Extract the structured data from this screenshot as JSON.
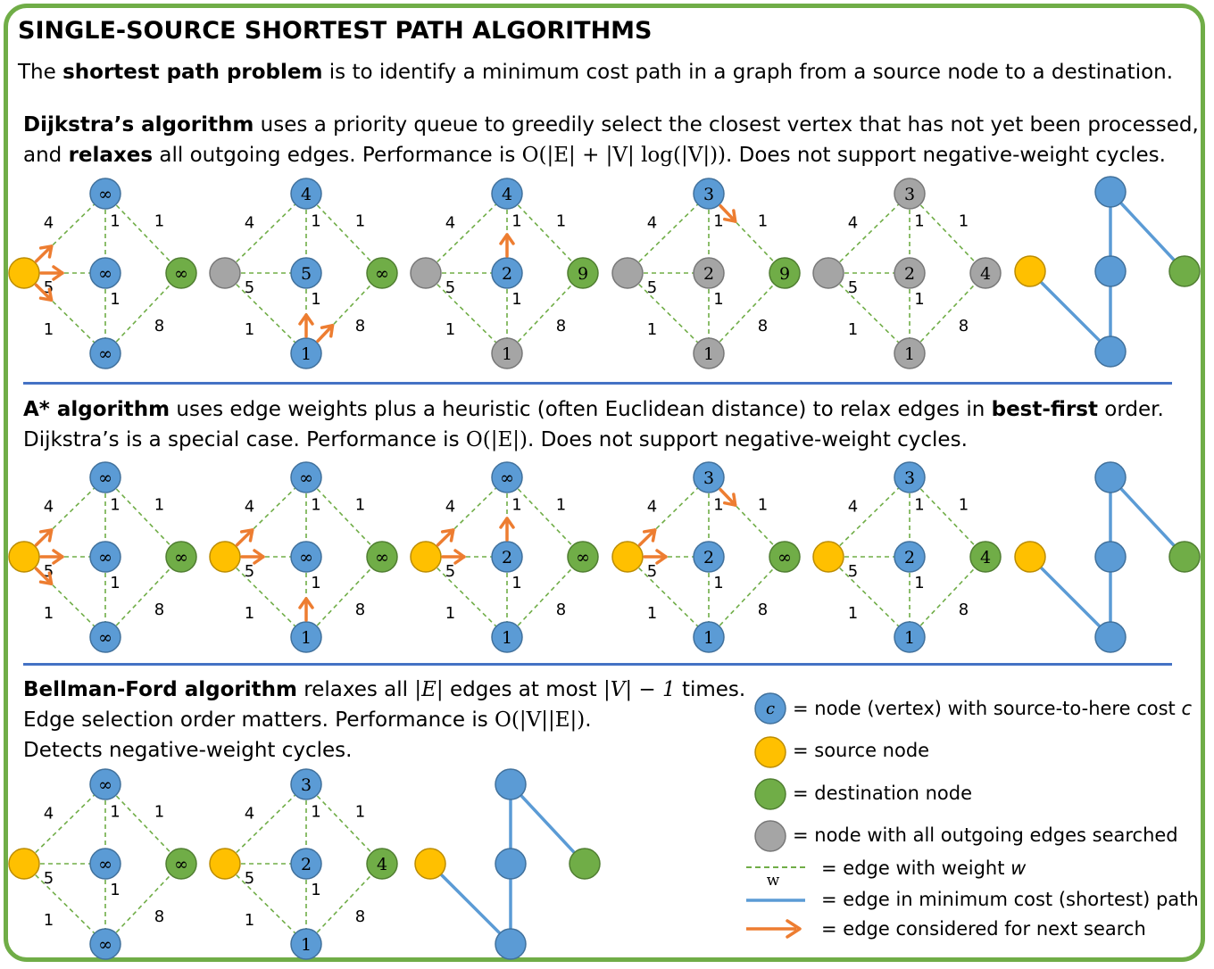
{
  "title": "SINGLE-SOURCE SHORTEST PATH ALGORITHMS",
  "intro": {
    "pre": "The ",
    "bold": "shortest path problem",
    "post": " is to identify a minimum cost path in a graph from a source node to a destination."
  },
  "dijkstra": {
    "name": "Dijkstra’s algorithm",
    "line1_rest": " uses a priority queue to greedily select the closest vertex that has not yet been processed,",
    "line2_pre": "and ",
    "line2_bold": "relaxes",
    "line2_mid": " all outgoing edges. Performance is ",
    "line2_math": "O(|E| + |V| log(|V|))",
    "line2_post": ". Does not support negative-weight cycles."
  },
  "astar": {
    "name": "A* algorithm",
    "line1_rest": " uses edge weights plus a heuristic (often Euclidean distance) to relax edges in ",
    "line1_bold": "best-first",
    "line1_post": " order.",
    "line2_pre": "Dijkstra’s is a special case. Performance is ",
    "line2_math": "O(|E|)",
    "line2_post": ". Does not support negative-weight cycles."
  },
  "bellman": {
    "name": "Bellman-Ford algorithm",
    "line1_rest": " relaxes all ",
    "line1_math1": "|E|",
    "line1_mid": " edges at most ",
    "line1_math2": "|V| − 1",
    "line1_post": " times.",
    "line2_pre": "Edge selection order matters. Performance is ",
    "line2_math": "O(|V||E|)",
    "line2_post": ".",
    "line3": "Detects negative-weight cycles."
  },
  "legend": {
    "node_symbol": "c",
    "node_pre": "= node (vertex) with source-to-here cost ",
    "node_var": "c",
    "source": "= source node",
    "destination": "= destination node",
    "searched": "= node with all outgoing edges searched",
    "weight_symbol": "w",
    "edge_pre": "= edge with weight ",
    "edge_var": "w",
    "path": "= edge in minimum cost (shortest) path",
    "next": "= edge considered for next search"
  },
  "colors": {
    "frame": "#70ad47",
    "node_blue": "#5b9bd5",
    "node_source": "#ffc000",
    "node_dest": "#70ad47",
    "node_gray": "#a5a5a5",
    "edge_dashed": "#70ad47",
    "path_edge": "#5b9bd5",
    "arrow": "#ed7d31",
    "rule": "#4472c4"
  },
  "edge_weights": {
    "s_top": "4",
    "s_mid": "5",
    "s_bot": "1",
    "top_mid": "1",
    "mid_bot": "1",
    "top_dest": "1",
    "bot_dest": "8"
  },
  "graphs": {
    "dijkstra": [
      {
        "labels": {
          "top": "∞",
          "mid": "∞",
          "bot": "∞",
          "dest": "∞",
          "src": ""
        },
        "kinds": {
          "src": "source",
          "top": "blue",
          "mid": "blue",
          "bot": "blue",
          "dest": "dest"
        },
        "arrows": [
          "s_top",
          "s_mid",
          "s_bot"
        ]
      },
      {
        "labels": {
          "top": "4",
          "mid": "5",
          "bot": "1",
          "dest": "∞",
          "src": ""
        },
        "kinds": {
          "src": "gray",
          "top": "blue",
          "mid": "blue",
          "bot": "blue",
          "dest": "dest"
        },
        "arrows": [
          "bot_mid",
          "bot_dest"
        ]
      },
      {
        "labels": {
          "top": "4",
          "mid": "2",
          "bot": "1",
          "dest": "9",
          "src": ""
        },
        "kinds": {
          "src": "gray",
          "top": "blue",
          "mid": "blue",
          "bot": "gray",
          "dest": "dest"
        },
        "arrows": [
          "mid_top"
        ]
      },
      {
        "labels": {
          "top": "3",
          "mid": "2",
          "bot": "1",
          "dest": "9",
          "src": ""
        },
        "kinds": {
          "src": "gray",
          "top": "blue",
          "mid": "gray",
          "bot": "gray",
          "dest": "dest"
        },
        "arrows": [
          "top_dest"
        ]
      },
      {
        "labels": {
          "top": "3",
          "mid": "2",
          "bot": "1",
          "dest": "4",
          "src": ""
        },
        "kinds": {
          "src": "gray",
          "top": "gray",
          "mid": "gray",
          "bot": "gray",
          "dest": "gray"
        },
        "arrows": []
      }
    ],
    "astar": [
      {
        "labels": {
          "top": "∞",
          "mid": "∞",
          "bot": "∞",
          "dest": "∞",
          "src": ""
        },
        "kinds": {
          "src": "source",
          "top": "blue",
          "mid": "blue",
          "bot": "blue",
          "dest": "dest"
        },
        "arrows": [
          "s_top",
          "s_mid",
          "s_bot"
        ]
      },
      {
        "labels": {
          "top": "∞",
          "mid": "∞",
          "bot": "1",
          "dest": "∞",
          "src": ""
        },
        "kinds": {
          "src": "source",
          "top": "blue",
          "mid": "blue",
          "bot": "blue",
          "dest": "dest"
        },
        "arrows": [
          "s_top",
          "s_mid",
          "bot_mid"
        ]
      },
      {
        "labels": {
          "top": "∞",
          "mid": "2",
          "bot": "1",
          "dest": "∞",
          "src": ""
        },
        "kinds": {
          "src": "source",
          "top": "blue",
          "mid": "blue",
          "bot": "blue",
          "dest": "dest"
        },
        "arrows": [
          "s_top",
          "s_mid",
          "mid_top"
        ]
      },
      {
        "labels": {
          "top": "3",
          "mid": "2",
          "bot": "1",
          "dest": "∞",
          "src": ""
        },
        "kinds": {
          "src": "source",
          "top": "blue",
          "mid": "blue",
          "bot": "blue",
          "dest": "dest"
        },
        "arrows": [
          "s_top",
          "s_mid",
          "top_dest"
        ]
      },
      {
        "labels": {
          "top": "3",
          "mid": "2",
          "bot": "1",
          "dest": "4",
          "src": ""
        },
        "kinds": {
          "src": "source",
          "top": "blue",
          "mid": "blue",
          "bot": "blue",
          "dest": "dest"
        },
        "arrows": []
      }
    ],
    "bellman": [
      {
        "labels": {
          "top": "∞",
          "mid": "∞",
          "bot": "∞",
          "dest": "∞",
          "src": ""
        },
        "kinds": {
          "src": "source",
          "top": "blue",
          "mid": "blue",
          "bot": "blue",
          "dest": "dest"
        },
        "arrows": []
      },
      {
        "labels": {
          "top": "3",
          "mid": "2",
          "bot": "1",
          "dest": "4",
          "src": ""
        },
        "kinds": {
          "src": "source",
          "top": "blue",
          "mid": "blue",
          "bot": "blue",
          "dest": "dest"
        },
        "arrows": []
      }
    ]
  }
}
